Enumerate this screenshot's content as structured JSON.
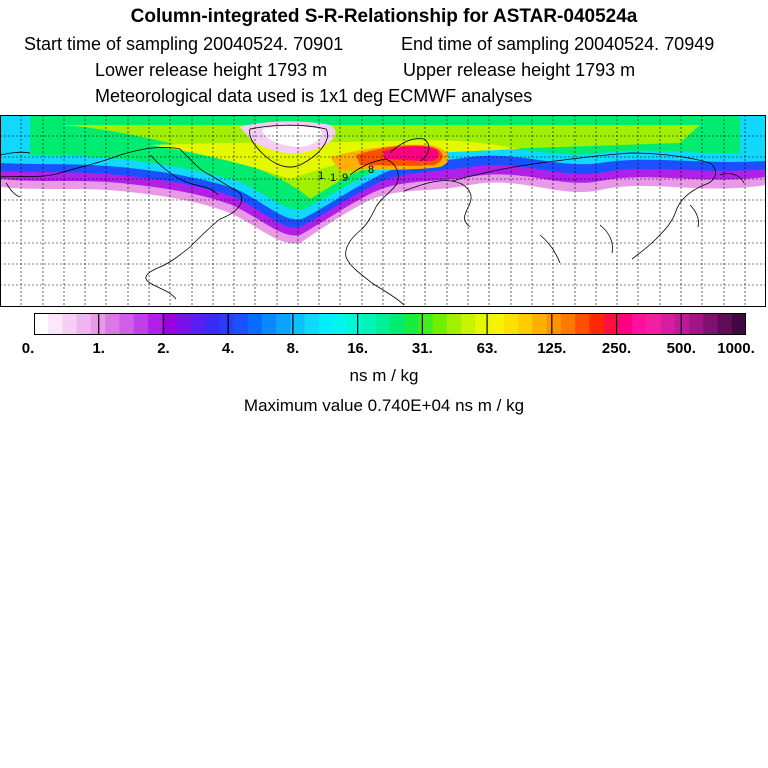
{
  "header": {
    "title": "Column-integrated S-R-Relationship for ASTAR-040524a",
    "start_time": "Start time of sampling 20040524. 70901",
    "end_time": "End time of sampling 20040524. 70949",
    "lower_height": "Lower release height 1793 m",
    "upper_height": "Upper release height 1793 m",
    "meteo": "Meteorological data used is 1x1 deg ECMWF analyses"
  },
  "map": {
    "projection": "lat-lon",
    "longitude_range": [
      -180,
      180
    ],
    "latitude_range": [
      0,
      90
    ],
    "grid": true,
    "contour_labels": [
      "1",
      "1",
      "9",
      "8"
    ]
  },
  "colorbar": {
    "tick_labels": [
      "0.",
      "1.",
      "2.",
      "4.",
      "8.",
      "16.",
      "31.",
      "63.",
      "125.",
      "250.",
      "500.",
      "1000."
    ],
    "unit": "ns m / kg",
    "colors": [
      "#ffffff",
      "#fbe6fb",
      "#f5cdf5",
      "#efb4ef",
      "#e89ae8",
      "#dc78e6",
      "#cf5ee8",
      "#c040e8",
      "#b020e8",
      "#9a00e0",
      "#7a10e8",
      "#5a1ef0",
      "#3a2af5",
      "#2a3cf8",
      "#1a50ff",
      "#0a6cff",
      "#0a88ff",
      "#0aa4ff",
      "#0ac0ff",
      "#10d8ff",
      "#00f0ff",
      "#00f8ec",
      "#00f8d4",
      "#00f4b8",
      "#00f098",
      "#00ec70",
      "#18ec40",
      "#40ee20",
      "#70f000",
      "#a0f000",
      "#c8f400",
      "#e4f800",
      "#f8f400",
      "#fce000",
      "#ffcc00",
      "#ffb000",
      "#ff9400",
      "#ff7800",
      "#ff5000",
      "#ff2800",
      "#ff1040",
      "#ff0080",
      "#ff10a0",
      "#f020a0",
      "#d81ca0",
      "#c0189a",
      "#a01488",
      "#801070",
      "#600c58",
      "#400840"
    ]
  },
  "footer": {
    "max_value": "Maximum value  0.740E+04 ns m / kg"
  }
}
